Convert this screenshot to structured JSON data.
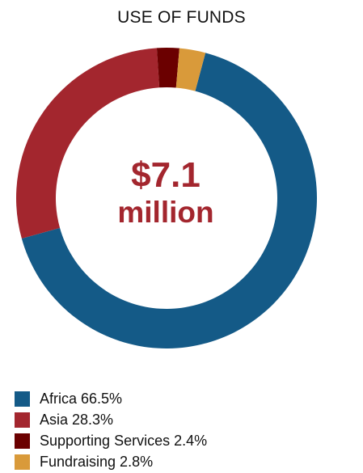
{
  "chart_data": {
    "type": "pie",
    "title": "USE OF FUNDS",
    "center_label": {
      "amount": "$7.1",
      "unit": "million"
    },
    "slices": [
      {
        "label": "Africa 66.5%",
        "value": 66.5,
        "color": "#145A87"
      },
      {
        "label": "Asia 28.3%",
        "value": 28.3,
        "color": "#A3262E"
      },
      {
        "label": "Supporting Services 2.4%",
        "value": 2.4,
        "color": "#6B0000"
      },
      {
        "label": "Fundraising 2.8%",
        "value": 2.8,
        "color": "#D99A3A"
      }
    ],
    "legend_position": "bottom-left"
  }
}
